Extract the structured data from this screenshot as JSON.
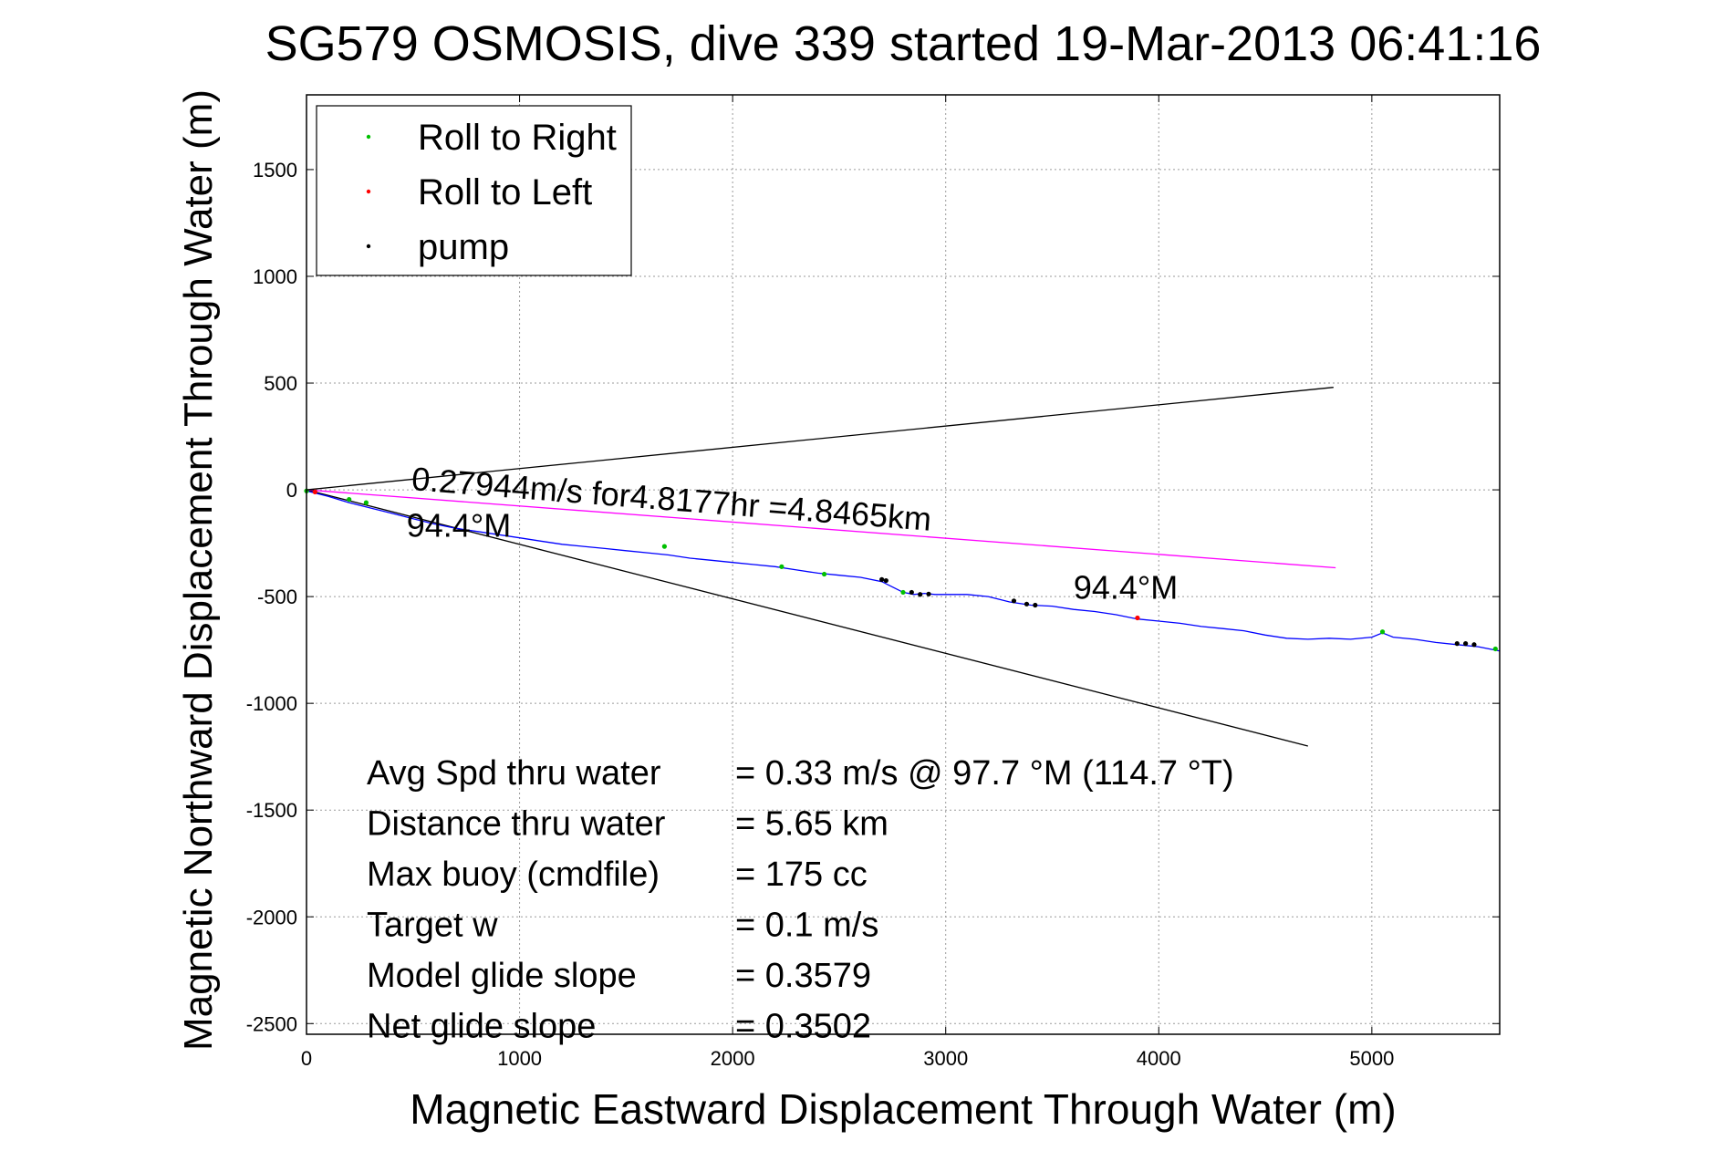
{
  "chart_data": {
    "type": "line",
    "title": "SG579 OSMOSIS, dive 339 started 19-Mar-2013 06:41:16",
    "xlabel": "Magnetic Eastward Displacement Through Water (m)",
    "ylabel": "Magnetic Northward Displacement Through Water (m)",
    "xlim": [
      0,
      5600
    ],
    "ylim": [
      -2550,
      1850
    ],
    "xticks": [
      0,
      1000,
      2000,
      3000,
      4000,
      5000
    ],
    "yticks": [
      1500,
      1000,
      500,
      0,
      -500,
      -1000,
      -1500,
      -2000,
      -2500
    ],
    "grid": true,
    "legend": {
      "placement": "top-left",
      "entries": [
        {
          "label": "Roll to Right",
          "color": "#00c000"
        },
        {
          "label": "Roll to Left",
          "color": "#ff0000"
        },
        {
          "label": "pump",
          "color": "#000000"
        }
      ]
    },
    "reference_lines": [
      {
        "color": "#000000",
        "x": [
          0,
          4820
        ],
        "y": [
          0,
          480
        ]
      },
      {
        "color": "#000000",
        "x": [
          0,
          4700
        ],
        "y": [
          0,
          -1200
        ]
      },
      {
        "color": "#ff00ff",
        "x": [
          0,
          4830
        ],
        "y": [
          0,
          -365
        ]
      }
    ],
    "track": {
      "color": "#0000ff",
      "x": [
        0,
        100,
        200,
        300,
        400,
        500,
        600,
        700,
        800,
        900,
        1000,
        1100,
        1200,
        1300,
        1400,
        1500,
        1600,
        1700,
        1800,
        1900,
        2000,
        2100,
        2200,
        2300,
        2400,
        2500,
        2600,
        2700,
        2750,
        2800,
        2850,
        2900,
        2950,
        3000,
        3100,
        3200,
        3300,
        3400,
        3500,
        3600,
        3700,
        3800,
        3900,
        4000,
        4100,
        4200,
        4300,
        4400,
        4500,
        4600,
        4700,
        4800,
        4900,
        5000,
        5050,
        5100,
        5200,
        5300,
        5400,
        5500,
        5600
      ],
      "y": [
        -5,
        -30,
        -60,
        -85,
        -110,
        -135,
        -160,
        -180,
        -195,
        -210,
        -225,
        -240,
        -255,
        -265,
        -275,
        -285,
        -295,
        -305,
        -320,
        -330,
        -340,
        -350,
        -360,
        -375,
        -390,
        -400,
        -410,
        -430,
        -455,
        -480,
        -490,
        -485,
        -490,
        -490,
        -490,
        -500,
        -525,
        -540,
        -545,
        -560,
        -570,
        -585,
        -605,
        -615,
        -625,
        -640,
        -650,
        -660,
        -680,
        -695,
        -700,
        -695,
        -700,
        -690,
        -670,
        -690,
        -700,
        -715,
        -725,
        -735,
        -755
      ]
    },
    "markers": {
      "roll_right": {
        "x": [
          0,
          200,
          280,
          1680,
          2230,
          2430,
          2800,
          5050,
          5580
        ],
        "y": [
          -5,
          -45,
          -60,
          -265,
          -360,
          -395,
          -480,
          -665,
          -745
        ]
      },
      "roll_left": {
        "x": [
          40,
          3900
        ],
        "y": [
          -10,
          -600
        ]
      },
      "pump": {
        "x": [
          2700,
          2720,
          2840,
          2880,
          2920,
          3320,
          3380,
          3420,
          5400,
          5440,
          5480
        ],
        "y": [
          -420,
          -425,
          -480,
          -490,
          -488,
          -520,
          -535,
          -540,
          -720,
          -720,
          -725
        ]
      }
    },
    "annotations": [
      {
        "text": "0.27944m/s for4.8177hr =4.8465km",
        "x": 490,
        "y": 0
      },
      {
        "text": "94.4°M",
        "x": 470,
        "y": -220
      },
      {
        "text": "94.4°M",
        "x": 3600,
        "y": -510
      }
    ],
    "stats": [
      {
        "label": "Avg Spd thru water",
        "value": "=  0.33 m/s @  97.7 °M (114.7 °T)"
      },
      {
        "label": "Distance thru water",
        "value": "=  5.65 km"
      },
      {
        "label": "Max buoy (cmdfile)",
        "value": "= 175 cc"
      },
      {
        "label": "Target w",
        "value": "= 0.1 m/s"
      },
      {
        "label": "Model glide slope",
        "value": "= 0.3579"
      },
      {
        "label": "Net glide slope",
        "value": "= 0.3502"
      }
    ]
  }
}
